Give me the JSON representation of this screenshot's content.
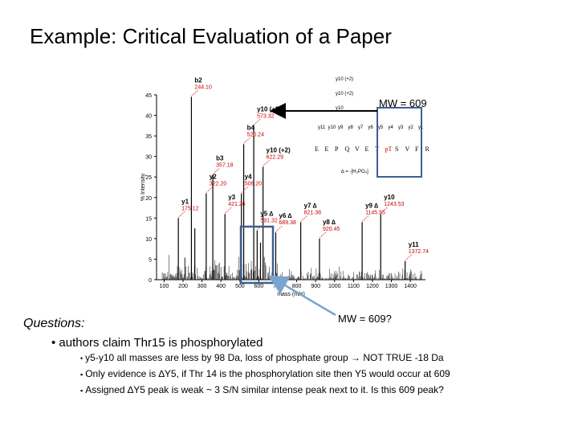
{
  "slide": {
    "title": "Example: Critical Evaluation of a Paper",
    "mw_label_top": "MW = 609",
    "mw_label_bottom": "MW = 609?",
    "questions_label": "Questions:",
    "claim": "• authors claim Thr15 is phosphorylated",
    "bullets": [
      "y5-y10 all masses are less by 98 Da, loss of phosphate group → NOT TRUE -18 Da",
      "Only evidence is ∆Y5, if Thr 14 is the phosphorylation site then Y5 would occur at 609",
      "Assigned ∆Y5 peak is weak ~ 3 S/N similar intense peak next to it. Is this 609 peak?"
    ],
    "bullet_marks": [
      "•",
      "▪",
      "▪"
    ]
  },
  "colors": {
    "peak": "#000000",
    "annotation": "#cc0000",
    "box": "#3d5f8f",
    "arrow": "#7aa3cf"
  },
  "chart_data": {
    "type": "bar",
    "xlabel": "mass (m/z)",
    "ylabel": "% Intensity",
    "xlim": [
      60,
      1480
    ],
    "ylim": [
      0,
      45
    ],
    "xticks": [
      100,
      200,
      300,
      400,
      500,
      600,
      700,
      800,
      900,
      1000,
      1100,
      1200,
      1300,
      1400
    ],
    "yticks": [
      0,
      5,
      10,
      15,
      20,
      25,
      30,
      35,
      40,
      45
    ],
    "peaks": [
      {
        "x": 244.1,
        "y": 44.5,
        "label": "b2",
        "mz": "244.10"
      },
      {
        "x": 262,
        "y": 12.5
      },
      {
        "x": 322.2,
        "y": 21,
        "label": "y2",
        "mz": "322.20"
      },
      {
        "x": 357.18,
        "y": 25.5,
        "label": "b3",
        "mz": "357.18"
      },
      {
        "x": 421.26,
        "y": 16,
        "label": "y3",
        "mz": "421.26"
      },
      {
        "x": 508.2,
        "y": 21,
        "label": "y4",
        "mz": "508.20"
      },
      {
        "x": 520.24,
        "y": 33,
        "label": "b4",
        "mz": "520.24"
      },
      {
        "x": 573.32,
        "y": 37.5,
        "label": "y10 (+2)",
        "mz": "573.32"
      },
      {
        "x": 591.32,
        "y": 12,
        "label": "y5 ∆",
        "mz": "591.32"
      },
      {
        "x": 609,
        "y": 9
      },
      {
        "x": 622.29,
        "y": 27.5,
        "label": "y10 (+2)",
        "mz": "622.29"
      },
      {
        "x": 689.38,
        "y": 11.5,
        "label": "y6 ∆",
        "mz": "689.38"
      },
      {
        "x": 821.38,
        "y": 14,
        "label": "y7 ∆",
        "mz": "821.38"
      },
      {
        "x": 920.45,
        "y": 10,
        "label": "y8 ∆",
        "mz": "920.45"
      },
      {
        "x": 1145.55,
        "y": 14,
        "label": "y9 ∆",
        "mz": "1145.55"
      },
      {
        "x": 1243.53,
        "y": 16,
        "label": "y10",
        "mz": "1243.53"
      },
      {
        "x": 1372.74,
        "y": 4.5,
        "label": "y11",
        "mz": "1372.74"
      },
      {
        "x": 175.12,
        "y": 15,
        "label": "y1",
        "mz": "175.12"
      }
    ],
    "sequence": [
      "E",
      "E",
      "P",
      "Q",
      "V",
      "E",
      "T",
      "pT",
      "S",
      "V",
      "F",
      "R"
    ],
    "y_ion_labels": [
      "y11",
      "y10",
      "y9",
      "y8",
      "y7",
      "y6",
      "y5",
      "y4",
      "y3",
      "y2",
      "y1"
    ],
    "top_ion_labels": [
      "y10 (+2)",
      "y10 (+2)",
      "y10"
    ],
    "neutral_loss_label": "∆ = -[H₃PO₄]"
  }
}
